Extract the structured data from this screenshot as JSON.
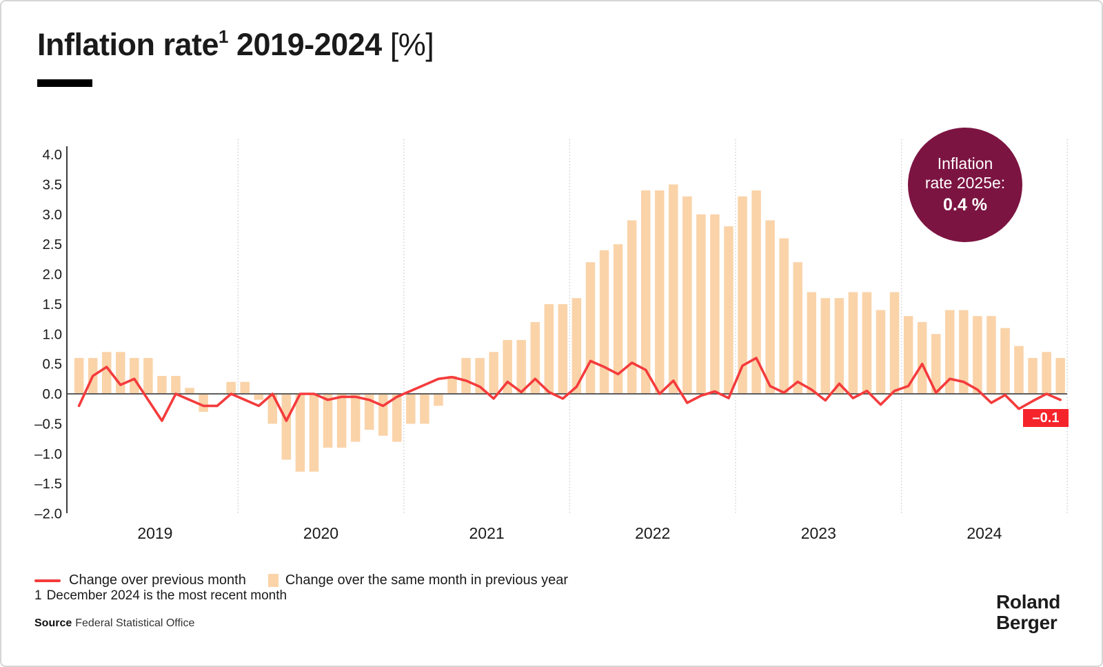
{
  "title": {
    "main": "Inflation rate",
    "footnote_mark": "1",
    "range": " 2019-2024 ",
    "unit": "[%]"
  },
  "badge": {
    "line1": "Inflation",
    "line2": "rate 2025e:",
    "value": "0.4 %",
    "color": "#7c1442"
  },
  "chart_data": {
    "type": "bar+line",
    "x_unit": "month",
    "x_start": "Jan 2019",
    "x_end": "Dec 2024",
    "x_years": [
      "2019",
      "2020",
      "2021",
      "2022",
      "2023",
      "2024"
    ],
    "y_ticks": [
      "4.0",
      "3.5",
      "3.0",
      "2.5",
      "2.0",
      "1.5",
      "1.0",
      "0.5",
      "0.0",
      "–0.5",
      "–1.0",
      "–1.5",
      "–2.0"
    ],
    "ylim": [
      -2.0,
      4.0
    ],
    "grid": "dotted vertical year separators",
    "legend_position": "bottom-left",
    "series": [
      {
        "name": "Change over the same month in previous year",
        "type": "bar",
        "color": "#fad3a9",
        "values": [
          0.6,
          0.6,
          0.7,
          0.7,
          0.6,
          0.6,
          0.3,
          0.3,
          0.1,
          -0.3,
          0.0,
          0.2,
          0.2,
          -0.1,
          -0.5,
          -1.1,
          -1.3,
          -1.3,
          -0.9,
          -0.9,
          -0.8,
          -0.6,
          -0.7,
          -0.8,
          -0.5,
          -0.5,
          -0.2,
          0.3,
          0.6,
          0.6,
          0.7,
          0.9,
          0.9,
          1.2,
          1.5,
          1.5,
          1.6,
          2.2,
          2.4,
          2.5,
          2.9,
          3.4,
          3.4,
          3.5,
          3.3,
          3.0,
          3.0,
          2.8,
          3.3,
          3.4,
          2.9,
          2.6,
          2.2,
          1.7,
          1.6,
          1.6,
          1.7,
          1.7,
          1.4,
          1.7,
          1.3,
          1.2,
          1.0,
          1.4,
          1.4,
          1.3,
          1.3,
          1.1,
          0.8,
          0.6,
          0.7,
          0.6
        ]
      },
      {
        "name": "Change over previous month",
        "type": "line",
        "color": "#f43b3c",
        "values": [
          -0.2,
          0.3,
          0.45,
          0.15,
          0.25,
          -0.1,
          -0.45,
          0.0,
          -0.1,
          -0.2,
          -0.2,
          0.0,
          -0.1,
          -0.2,
          0.0,
          -0.45,
          0.0,
          0.0,
          -0.1,
          -0.05,
          -0.05,
          -0.1,
          -0.2,
          -0.05,
          0.05,
          0.15,
          0.25,
          0.28,
          0.22,
          0.12,
          -0.08,
          0.2,
          0.03,
          0.25,
          0.03,
          -0.08,
          0.12,
          0.55,
          0.45,
          0.33,
          0.52,
          0.4,
          0.0,
          0.22,
          -0.15,
          -0.03,
          0.04,
          -0.07,
          0.47,
          0.6,
          0.13,
          0.02,
          0.2,
          0.07,
          -0.11,
          0.17,
          -0.07,
          0.05,
          -0.18,
          0.05,
          0.13,
          0.5,
          0.02,
          0.25,
          0.2,
          0.07,
          -0.15,
          -0.02,
          -0.25,
          -0.12,
          0.0,
          -0.1
        ]
      }
    ],
    "title": "Inflation rate 2019-2024 [%]",
    "last_value_label": "–0.1",
    "last_value_color": "#f5242b"
  },
  "legend": {
    "items": [
      {
        "swatch": "line",
        "label": "Change over previous month"
      },
      {
        "swatch": "square",
        "label": "Change over the same month in previous year"
      }
    ]
  },
  "footnote": {
    "mark": "1",
    "text": "December 2024 is the most recent month"
  },
  "source": {
    "word": "Source",
    "value": "Federal Statistical Office"
  },
  "logo": {
    "line1": "Roland",
    "line2": "Berger"
  }
}
